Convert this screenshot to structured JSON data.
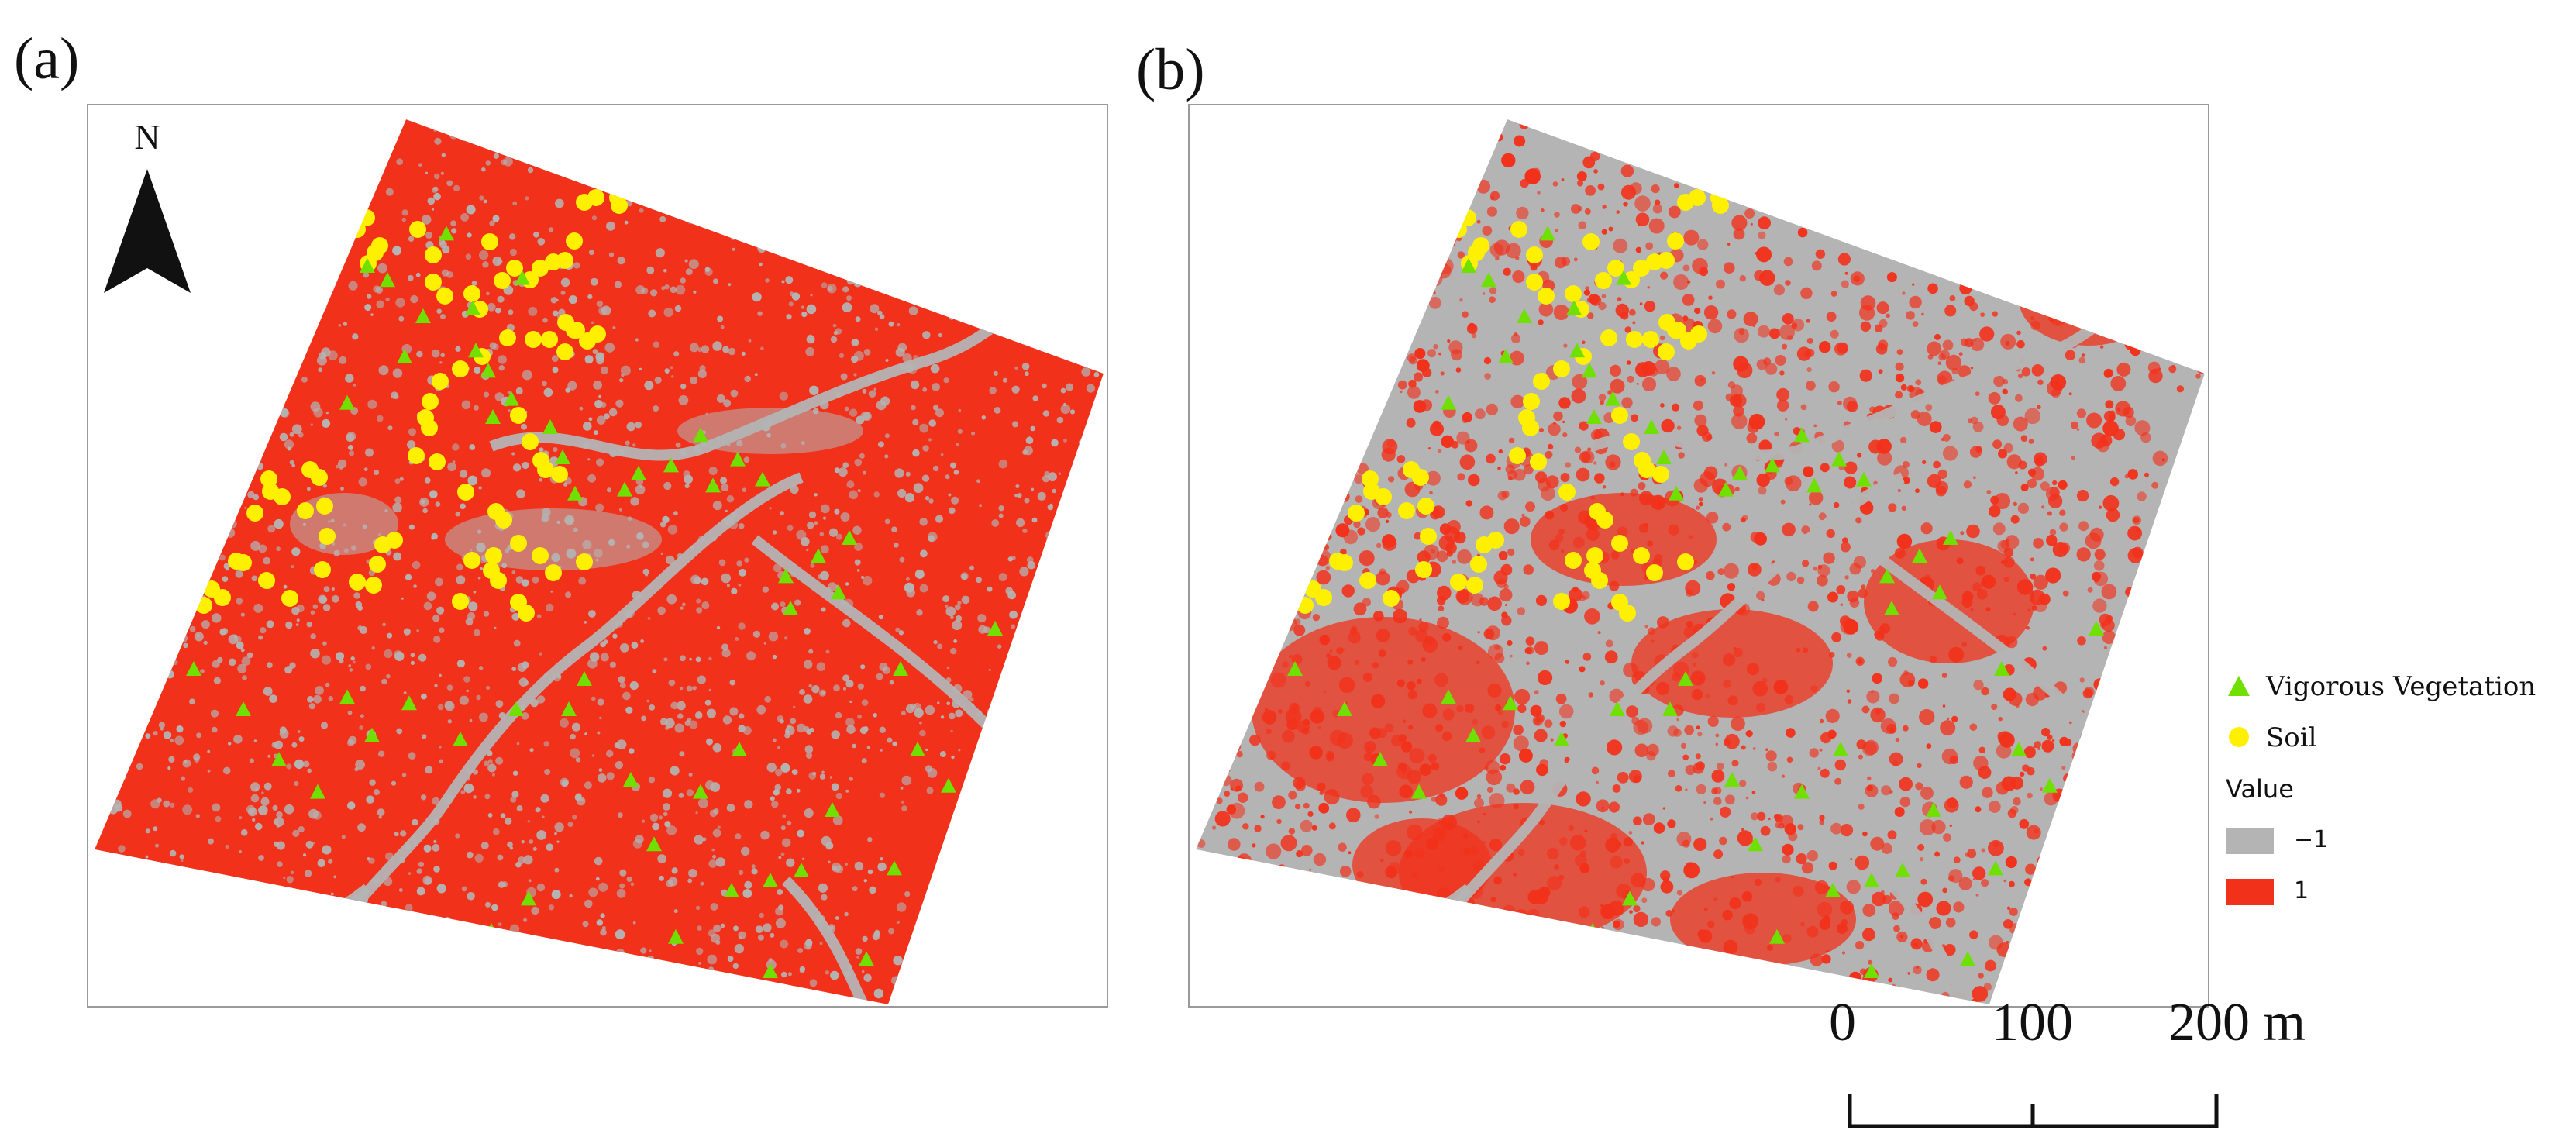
{
  "panels": [
    {
      "label": "(a)",
      "index_fill": "#f2311b",
      "background_fill": "#b4b4b4"
    },
    {
      "label": "(b)",
      "index_fill": "#f2311b",
      "background_fill": "#b4b4b4"
    }
  ],
  "north_arrow": {
    "letter": "N",
    "icon": "north-arrow-icon"
  },
  "legend": {
    "items": [
      {
        "symbol": "triangle",
        "color": "#6fe000",
        "label": "Vigorous Vegetation"
      },
      {
        "symbol": "circle",
        "color": "#fff000",
        "label": "Soil"
      }
    ],
    "value_title": "Value",
    "classes": [
      {
        "label": "−1",
        "color": "#b4b4b4"
      },
      {
        "label": "1",
        "color": "#f2311b"
      }
    ]
  },
  "scale_bar": {
    "ticks": [
      "0",
      "100",
      "200 m"
    ]
  }
}
